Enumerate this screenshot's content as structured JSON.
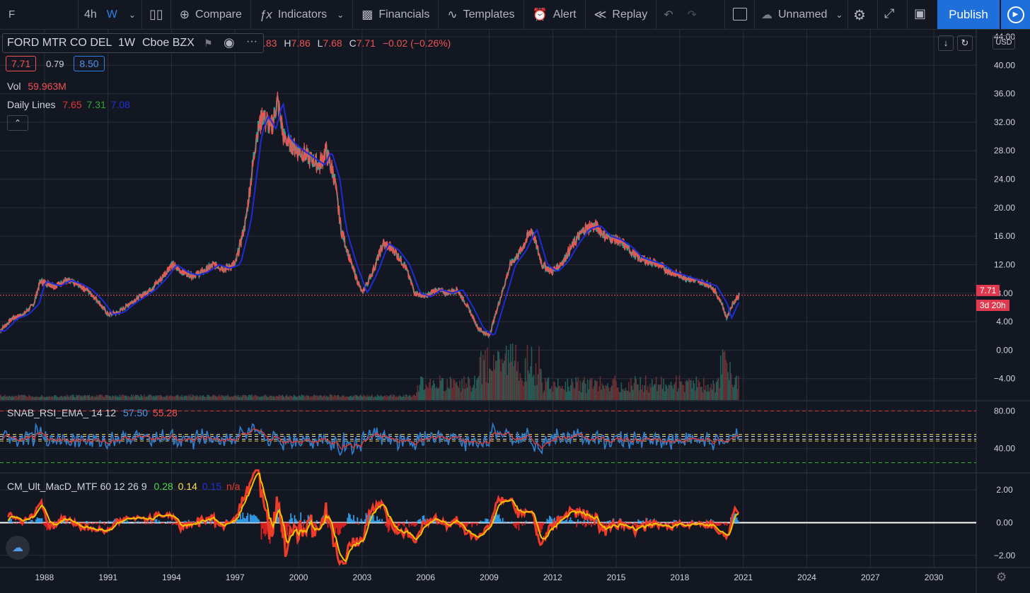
{
  "toolbar": {
    "symbol": "F",
    "interval_4h": "4h",
    "interval_w": "W",
    "compare": "Compare",
    "indicators": "Indicators",
    "financials": "Financials",
    "templates": "Templates",
    "alert": "Alert",
    "replay": "Replay",
    "layout_name": "Unnamed",
    "publish": "Publish"
  },
  "legend": {
    "name": "FORD MTR CO DEL",
    "interval": "1W",
    "exchange": "Cboe BZX",
    "ohlc_o_fragment": ".83",
    "h_label": "H",
    "h_value": "7.86",
    "l_label": "L",
    "l_value": "7.68",
    "c_label": "C",
    "c_value": "7.71",
    "change": "−0.02 (−0.26%)",
    "bid": "7.71",
    "spread": "0.79",
    "ask": "8.50",
    "vol_label": "Vol",
    "vol_value": "59.963M",
    "daily_lines_label": "Daily Lines",
    "daily_lines_v1": "7.65",
    "daily_lines_v2": "7.31",
    "daily_lines_v3": "7.08",
    "rsi_label": "SNAB_RSI_EMA_ 14 12",
    "rsi_v1": "57.50",
    "rsi_v2": "55.28",
    "macd_label": "CM_Ult_MacD_MTF 60 12 26 9",
    "macd_v1": "0.28",
    "macd_v2": "0.14",
    "macd_v3": "0.15",
    "macd_v4": "n/a"
  },
  "currency": "USD",
  "last_price_tag": "7.71",
  "countdown_tag": "3d 20h",
  "colors": {
    "background": "#131722",
    "up": "#26a69a",
    "down": "#ef5350",
    "ma": "#1f2bd6",
    "rsi": "#2f7fd0",
    "rsi_ema": "#d13b3b",
    "publish": "#1e6fd9"
  },
  "chart_data": [
    {
      "type": "line",
      "title": "",
      "y_ticks": [
        "44.00",
        "40.00",
        "36.00",
        "32.00",
        "28.00",
        "24.00",
        "20.00",
        "16.00",
        "12.00",
        "8.00",
        "4.00",
        "0.00",
        "−4.00"
      ],
      "x_ticks": [
        "1988",
        "1991",
        "1994",
        "1997",
        "2000",
        "2003",
        "2006",
        "2009",
        "2012",
        "2015",
        "2018",
        "2021",
        "2024",
        "2027",
        "2030"
      ],
      "ylim": [
        -8,
        44
      ],
      "xlim": [
        1985.9,
        2032.0
      ],
      "series": [
        {
          "x": [
            1985.9,
            1986.5,
            1987.0,
            1987.5,
            1987.8,
            1988.5,
            1989.0,
            1989.5,
            1990.0,
            1990.5,
            1991.0,
            1991.5,
            1992.0,
            1992.5,
            1993.0,
            1993.5,
            1994.0,
            1994.5,
            1995.0,
            1995.5,
            1996.0,
            1996.5,
            1997.0,
            1997.5,
            1998.0,
            1998.3,
            1998.7,
            1999.0,
            1999.3,
            1999.6,
            2000.0,
            2000.5,
            2001.0,
            2001.3,
            2001.7,
            2002.0,
            2002.5,
            2003.0,
            2003.5,
            2004.0,
            2004.5,
            2005.0,
            2005.5,
            2006.0,
            2006.5,
            2007.0,
            2007.5,
            2008.0,
            2008.5,
            2009.0,
            2009.5,
            2010.0,
            2010.5,
            2011.0,
            2011.5,
            2012.0,
            2012.5,
            2013.0,
            2013.5,
            2014.0,
            2014.5,
            2015.0,
            2015.5,
            2016.0,
            2016.5,
            2017.0,
            2017.5,
            2018.0,
            2018.5,
            2019.0,
            2019.5,
            2020.0,
            2020.2,
            2020.5,
            2020.8
          ],
          "values": [
            2.7,
            4.5,
            5.0,
            6.5,
            9.7,
            9.0,
            9.8,
            9.3,
            8.5,
            7.0,
            5.0,
            5.3,
            6.5,
            7.5,
            8.5,
            10.0,
            12.0,
            11.0,
            10.5,
            11.0,
            12.0,
            11.5,
            12.0,
            18.0,
            30.0,
            33.0,
            31.0,
            35.0,
            30.0,
            29.0,
            28.0,
            27.0,
            26.0,
            28.0,
            24.0,
            17.0,
            12.0,
            8.0,
            11.0,
            15.0,
            14.0,
            12.0,
            8.0,
            7.5,
            8.5,
            8.0,
            8.5,
            6.0,
            3.0,
            2.0,
            7.0,
            12.0,
            14.0,
            17.0,
            12.0,
            11.0,
            12.5,
            15.0,
            17.0,
            17.5,
            16.0,
            15.5,
            14.5,
            13.0,
            12.5,
            12.0,
            11.0,
            10.5,
            10.0,
            9.5,
            9.0,
            6.5,
            4.5,
            6.5,
            7.71
          ]
        }
      ]
    },
    {
      "type": "line",
      "title": "",
      "y_ticks": [
        "80.00",
        "40.00"
      ],
      "ylim": [
        15,
        90
      ],
      "levels": [
        80,
        55,
        53,
        50,
        48,
        25
      ]
    },
    {
      "type": "line",
      "title": "",
      "y_ticks": [
        "2.00",
        "0.00",
        "−2.00"
      ],
      "ylim": [
        -2.7,
        3.0
      ],
      "zero_line": 0
    }
  ]
}
